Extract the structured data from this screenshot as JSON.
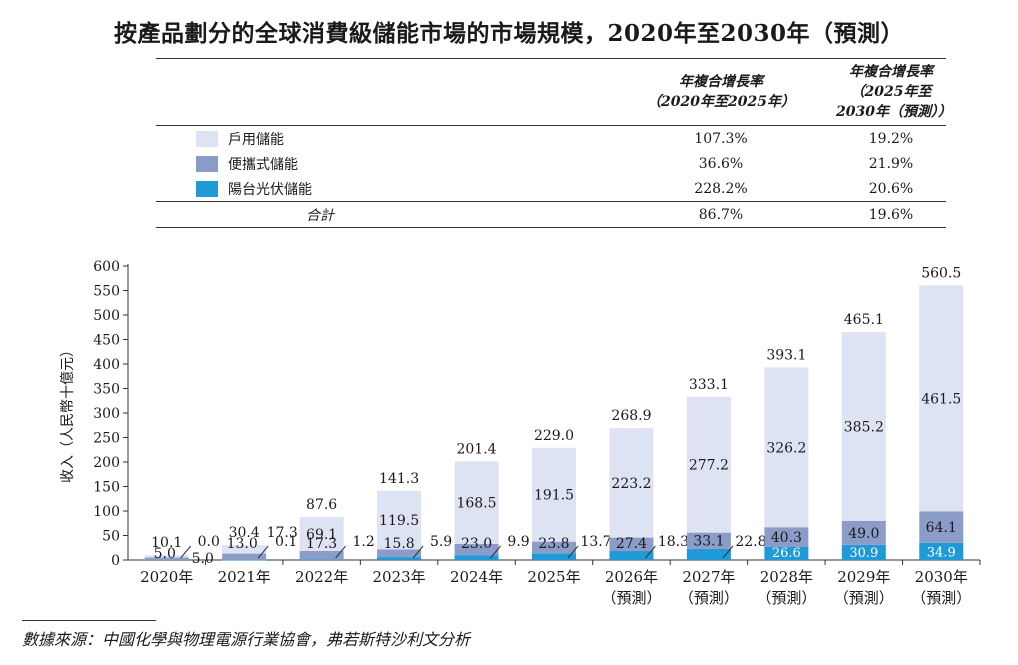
{
  "title": "按產品劃分的全球消費級儲能市場的市場規模，2020年至2030年（預測）",
  "table": {
    "col1_line1": "年複合增長率",
    "col1_line2": "（2020年至2025年）",
    "col2_line1": "年複合增長率",
    "col2_line2": "（2025年至2030年（預測））",
    "rows": [
      {
        "label": "戶用儲能",
        "color": "#dde3f2",
        "c1": "107.3%",
        "c2": "19.2%"
      },
      {
        "label": "便攜式儲能",
        "color": "#8c9cc8",
        "c1": "36.6%",
        "c2": "21.9%"
      },
      {
        "label": "陽台光伏儲能",
        "color": "#1f9ad6",
        "c1": "228.2%",
        "c2": "20.6%"
      }
    ],
    "total": {
      "label": "合計",
      "c1": "86.7%",
      "c2": "19.6%"
    }
  },
  "chart_data": {
    "type": "bar",
    "stacked": true,
    "categories": [
      "2020年",
      "2021年",
      "2022年",
      "2023年",
      "2024年",
      "2025年",
      "2026年\n(預測)",
      "2027年\n(預測)",
      "2028年\n(預測)",
      "2029年\n(預測)",
      "2030年\n(預測)"
    ],
    "series": [
      {
        "name": "陽台光伏儲能",
        "color": "#1f9ad6",
        "values": [
          0.0,
          0.1,
          1.2,
          5.9,
          9.9,
          13.7,
          18.3,
          22.8,
          26.6,
          30.9,
          34.9
        ]
      },
      {
        "name": "便攜式儲能",
        "color": "#8c9cc8",
        "values": [
          5.0,
          13.0,
          17.3,
          15.8,
          23.0,
          23.8,
          27.4,
          33.1,
          40.3,
          49.0,
          64.1
        ]
      },
      {
        "name": "戶用儲能",
        "color": "#dde3f2",
        "values": [
          5.0,
          17.3,
          69.1,
          119.5,
          168.5,
          191.5,
          223.2,
          277.2,
          326.2,
          385.2,
          461.5
        ]
      }
    ],
    "totals": [
      10.1,
      30.4,
      87.6,
      141.3,
      201.4,
      229.0,
      268.9,
      333.1,
      393.1,
      465.1,
      560.5
    ],
    "ylabel": "收入（人民幣十億元）",
    "ylim": [
      0,
      600
    ],
    "yticks": [
      0,
      50,
      100,
      150,
      200,
      250,
      300,
      350,
      400,
      450,
      500,
      550,
      600
    ],
    "grid": false
  },
  "source": "數據來源：中國化學與物理電源行業協會，弗若斯特沙利文分析"
}
